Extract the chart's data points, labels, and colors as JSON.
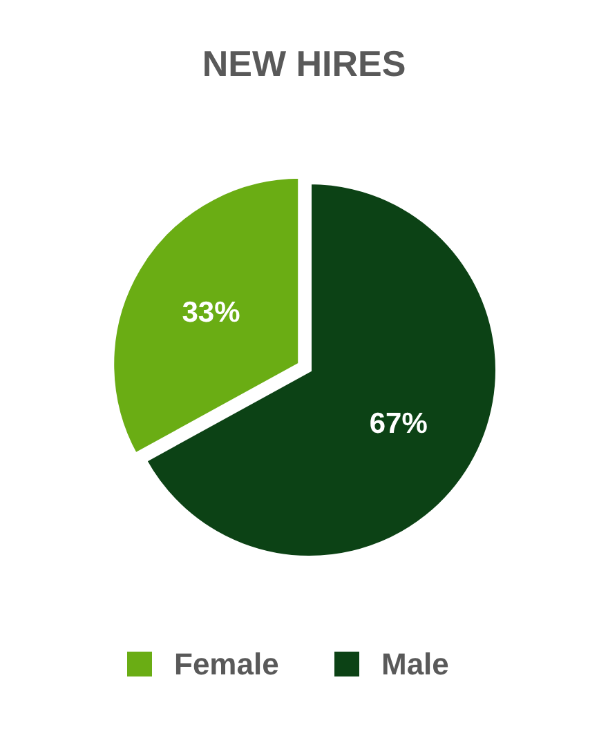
{
  "chart_data": {
    "type": "pie",
    "title": "NEW HIRES",
    "categories": [
      "Female",
      "Male"
    ],
    "values": [
      33,
      67
    ],
    "value_labels": [
      "33%",
      "67%"
    ],
    "colors": [
      "#6aad14",
      "#0c4215"
    ],
    "legend": "bottom"
  }
}
